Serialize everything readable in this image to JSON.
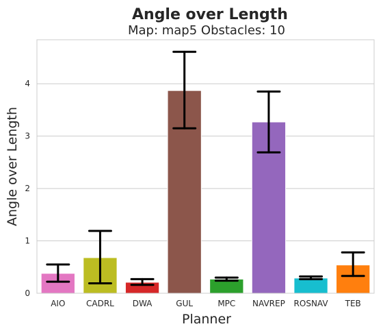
{
  "chart_data": {
    "type": "bar",
    "title": "Angle over Length",
    "subtitle": "Map: map5 Obstacles: 10",
    "xlabel": "Planner",
    "ylabel": "Angle over Length",
    "categories": [
      "AIO",
      "CADRL",
      "DWA",
      "GUL",
      "MPC",
      "NAVREP",
      "ROSNAV",
      "TEB"
    ],
    "values": [
      0.38,
      0.68,
      0.21,
      3.87,
      0.27,
      3.27,
      0.29,
      0.54
    ],
    "error_low": [
      0.22,
      0.19,
      0.16,
      3.15,
      0.24,
      2.69,
      0.27,
      0.33
    ],
    "error_high": [
      0.55,
      1.19,
      0.27,
      4.61,
      0.3,
      3.85,
      0.32,
      0.78
    ],
    "colors": [
      "#e377c2",
      "#bcbd22",
      "#d62728",
      "#8c564b",
      "#2ca02c",
      "#9467bd",
      "#17becf",
      "#ff7f0e"
    ],
    "yticks": [
      0,
      1,
      2,
      3,
      4
    ],
    "ylim": [
      0,
      4.84
    ],
    "grid": "horizontal"
  }
}
